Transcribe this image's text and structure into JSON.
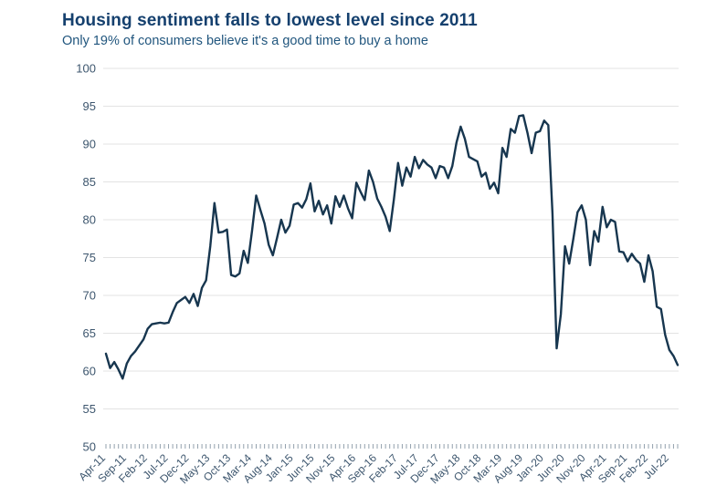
{
  "header": {
    "title": "Housing sentiment falls to lowest level since 2011",
    "subtitle": "Only 19% of consumers believe it's a good time to buy a home"
  },
  "colors": {
    "background": "#ffffff",
    "title_text": "#15406e",
    "subtitle_text": "#21567e",
    "line": "#17364f",
    "gridline": "#e3e3e3",
    "axis_text": "#3d566e",
    "month_tick": "#93a1ad"
  },
  "chart_data": {
    "type": "line",
    "title": "Housing sentiment falls to lowest level since 2011",
    "subtitle": "Only 19% of consumers believe it's a good time to buy a home",
    "grid": "horizontal",
    "legend": "none",
    "ylim": [
      50,
      100
    ],
    "yticks": [
      100,
      95,
      90,
      85,
      80,
      75,
      70,
      65,
      60,
      55,
      50
    ],
    "x_frequency": "monthly",
    "x_start": "Apr-11",
    "x_label_every_n_months": 5,
    "x_tick_labels": [
      "Apr-11",
      "Sep-11",
      "Feb-12",
      "Jul-12",
      "Dec-12",
      "May-13",
      "Oct-13",
      "Mar-14",
      "Aug-14",
      "Jan-15",
      "Jun-15",
      "Nov-15",
      "Apr-16",
      "Sep-16",
      "Feb-17",
      "Jul-17",
      "Dec-17",
      "May-18",
      "Oct-18",
      "Mar-19",
      "Aug-19",
      "Jan-20",
      "Jun-20",
      "Nov-20",
      "Apr-21",
      "Sep-21",
      "Feb-22",
      "Jul-22"
    ],
    "values": [
      62.3,
      60.4,
      61.2,
      60.2,
      59.0,
      61.0,
      62.0,
      62.6,
      63.4,
      64.2,
      65.6,
      66.2,
      66.3,
      66.4,
      66.3,
      66.4,
      67.8,
      69.0,
      69.4,
      69.8,
      69.0,
      70.2,
      68.6,
      71.0,
      72.0,
      76.5,
      82.2,
      78.3,
      78.4,
      78.7,
      72.7,
      72.5,
      72.9,
      75.9,
      74.3,
      78.5,
      83.2,
      81.3,
      79.5,
      76.7,
      75.3,
      77.6,
      80.0,
      78.3,
      79.2,
      82.0,
      82.2,
      81.6,
      82.7,
      84.8,
      81.1,
      82.5,
      80.7,
      81.9,
      79.5,
      83.1,
      81.7,
      83.2,
      81.5,
      80.2,
      84.9,
      83.7,
      82.6,
      86.5,
      85.0,
      82.8,
      81.7,
      80.4,
      78.5,
      82.7,
      87.5,
      84.5,
      86.9,
      85.7,
      88.3,
      86.8,
      87.9,
      87.3,
      86.9,
      85.5,
      87.1,
      86.9,
      85.5,
      87.1,
      90.2,
      92.3,
      90.7,
      88.3,
      88.0,
      87.7,
      85.7,
      86.2,
      84.1,
      84.9,
      83.5,
      89.5,
      88.3,
      92.0,
      91.5,
      93.7,
      93.8,
      91.5,
      88.8,
      91.5,
      91.7,
      93.1,
      92.5,
      80.8,
      63.0,
      67.5,
      76.5,
      74.2,
      77.5,
      81.0,
      81.9,
      80.0,
      74.0,
      78.5,
      77.1,
      81.7,
      79.0,
      80.0,
      79.7,
      75.8,
      75.7,
      74.5,
      75.5,
      74.7,
      74.2,
      71.8,
      75.3,
      73.2,
      68.5,
      68.2,
      64.8,
      62.8,
      62.0,
      60.8
    ]
  }
}
